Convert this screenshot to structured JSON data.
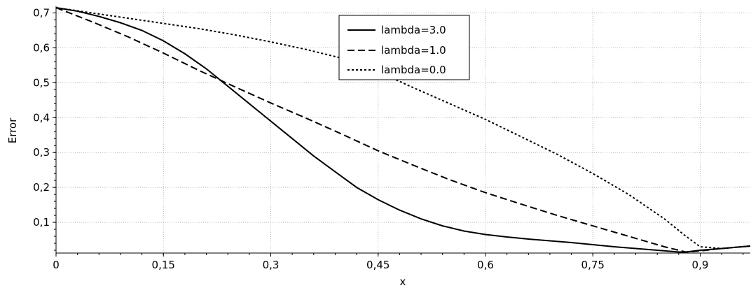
{
  "chart_data": {
    "type": "line",
    "xlabel": "x",
    "ylabel": "Error",
    "xlim": [
      0,
      0.97
    ],
    "ylim": [
      0.012,
      0.715
    ],
    "xticks": [
      0,
      0.15,
      0.3,
      0.45,
      0.6,
      0.75,
      0.9
    ],
    "xtick_labels": [
      "0",
      "0,15",
      "0,3",
      "0,45",
      "0,6",
      "0,75",
      "0,9"
    ],
    "yticks": [
      0.1,
      0.2,
      0.3,
      0.4,
      0.5,
      0.6,
      0.7
    ],
    "ytick_labels": [
      "0,1",
      "0,2",
      "0,3",
      "0,4",
      "0,5",
      "0,6",
      "0,7"
    ],
    "grid": true,
    "legend_position": "top-center",
    "series": [
      {
        "name": "lambda=3.0",
        "style": "solid",
        "x": [
          0,
          0.03,
          0.06,
          0.09,
          0.12,
          0.15,
          0.18,
          0.21,
          0.24,
          0.27,
          0.3,
          0.33,
          0.36,
          0.39,
          0.42,
          0.45,
          0.48,
          0.51,
          0.54,
          0.57,
          0.6,
          0.63,
          0.66,
          0.69,
          0.72,
          0.75,
          0.78,
          0.81,
          0.84,
          0.87,
          0.88,
          0.9,
          0.93,
          0.97
        ],
        "y": [
          0.715,
          0.705,
          0.69,
          0.672,
          0.65,
          0.62,
          0.583,
          0.54,
          0.49,
          0.44,
          0.39,
          0.34,
          0.29,
          0.245,
          0.2,
          0.165,
          0.135,
          0.11,
          0.09,
          0.075,
          0.065,
          0.058,
          0.052,
          0.047,
          0.042,
          0.036,
          0.03,
          0.025,
          0.02,
          0.015,
          0.015,
          0.02,
          0.025,
          0.032
        ]
      },
      {
        "name": "lambda=1.0",
        "style": "dashed",
        "x": [
          0,
          0.05,
          0.1,
          0.15,
          0.2,
          0.25,
          0.3,
          0.35,
          0.4,
          0.45,
          0.5,
          0.55,
          0.6,
          0.65,
          0.7,
          0.75,
          0.8,
          0.85,
          0.88,
          0.9,
          0.93,
          0.97
        ],
        "y": [
          0.715,
          0.675,
          0.632,
          0.585,
          0.535,
          0.488,
          0.442,
          0.398,
          0.352,
          0.305,
          0.263,
          0.222,
          0.185,
          0.152,
          0.12,
          0.09,
          0.06,
          0.03,
          0.015,
          0.018,
          0.025,
          0.032
        ]
      },
      {
        "name": "lambda=0.0",
        "style": "dotted",
        "x": [
          0,
          0.05,
          0.1,
          0.15,
          0.2,
          0.25,
          0.3,
          0.35,
          0.4,
          0.45,
          0.5,
          0.55,
          0.6,
          0.65,
          0.7,
          0.75,
          0.8,
          0.85,
          0.88,
          0.9,
          0.93,
          0.97
        ],
        "y": [
          0.715,
          0.7,
          0.685,
          0.67,
          0.655,
          0.637,
          0.617,
          0.595,
          0.57,
          0.532,
          0.485,
          0.44,
          0.395,
          0.345,
          0.295,
          0.24,
          0.18,
          0.11,
          0.06,
          0.03,
          0.025,
          0.032
        ]
      }
    ]
  }
}
